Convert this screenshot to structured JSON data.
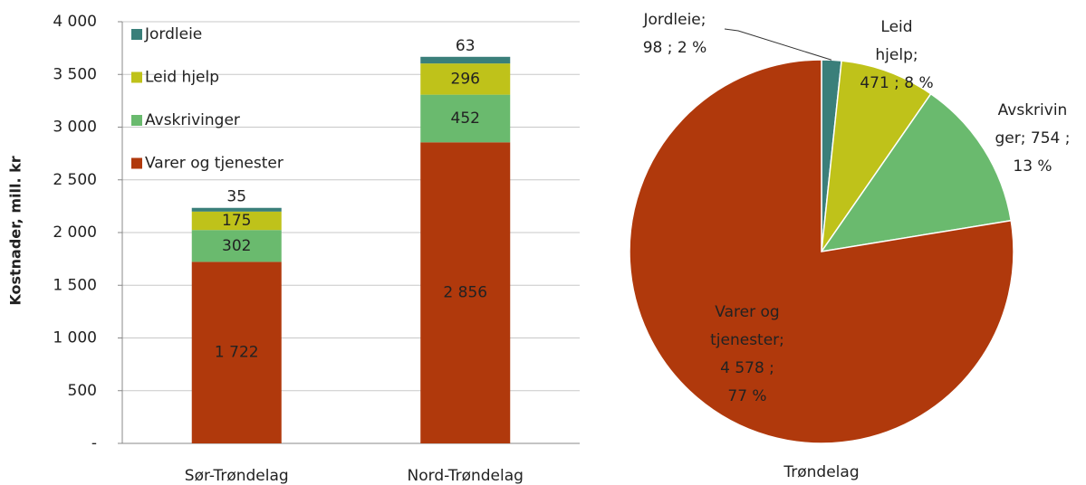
{
  "chart_data": [
    {
      "type": "stacked_bar",
      "ylabel": "Kostnader, mill. kr",
      "categories": [
        "Sør-Trøndelag",
        "Nord-Trøndelag"
      ],
      "series": [
        {
          "name": "Varer og tjenester",
          "color": "#b0390c",
          "values": [
            1722,
            2856
          ],
          "value_labels": [
            "1 722",
            "2 856"
          ]
        },
        {
          "name": "Avskrivinger",
          "color": "#6aba6e",
          "values": [
            302,
            452
          ]
        },
        {
          "name": "Leid hjelp",
          "color": "#bfc21a",
          "values": [
            175,
            296
          ]
        },
        {
          "name": "Jordleie",
          "color": "#3a7f7a",
          "values": [
            35,
            63
          ]
        }
      ],
      "ylim": [
        0,
        4000
      ],
      "yticks": [
        {
          "value": 0,
          "label": "-"
        },
        500,
        {
          "value": 1000,
          "label": "1 000"
        },
        {
          "value": 1500,
          "label": "1 500"
        },
        {
          "value": 2000,
          "label": "2 000"
        },
        {
          "value": 2500,
          "label": "2 500"
        },
        {
          "value": 3000,
          "label": "3 000"
        },
        {
          "value": 3500,
          "label": "3 500"
        },
        {
          "value": 4000,
          "label": "4 000"
        }
      ],
      "grid": true,
      "legend": "top-left"
    },
    {
      "type": "pie",
      "title": "Trøndelag",
      "categories": [
        "Jordleie",
        "Leid hjelp",
        "Avskrivinger",
        "Varer og tjenester"
      ],
      "colors": [
        "#3a7f7a",
        "#bfc21a",
        "#6aba6e",
        "#b0390c"
      ],
      "values": [
        98,
        471,
        754,
        4578
      ],
      "value_labels": [
        [
          "Jordleie;",
          "98 ; 2 %"
        ],
        [
          "Leid",
          "hjelp;",
          "471 ; 8 %"
        ],
        [
          "Avskrivin",
          "ger;  754 ;",
          "13 %"
        ],
        [
          "Varer og",
          "tjenester;",
          "4 578 ;",
          "77 %"
        ]
      ]
    }
  ]
}
